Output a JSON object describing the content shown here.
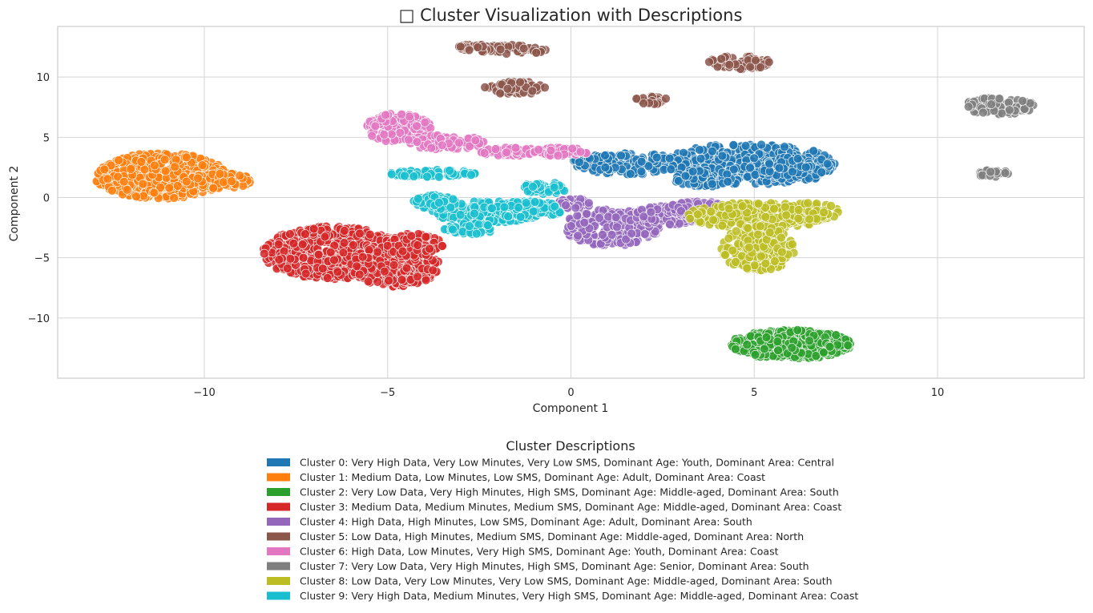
{
  "chart_data": {
    "type": "scatter",
    "title": "□ Cluster Visualization with Descriptions",
    "xlabel": "Component 1",
    "ylabel": "Component 2",
    "xlim": [
      -14,
      14
    ],
    "ylim": [
      -15,
      14.2
    ],
    "xticks": [
      -10,
      -5,
      0,
      5,
      10
    ],
    "yticks": [
      -10,
      -5,
      0,
      5,
      10
    ],
    "grid": true,
    "legend_title": "Cluster Descriptions",
    "legend_placement": "bottom-center, below plot",
    "series": [
      {
        "name": "Cluster 0: Very High Data, Very Low Minutes, Very Low SMS, Dominant Age: Youth, Dominant Area: Central",
        "color": "#1f77b4",
        "regions": [
          {
            "cx": 4.9,
            "cy": 2.8,
            "rx": 2.3,
            "ry": 1.7,
            "n": 420
          },
          {
            "cx": 1.6,
            "cy": 2.8,
            "rx": 1.6,
            "ry": 0.9,
            "n": 180
          },
          {
            "cx": 6.2,
            "cy": 2.4,
            "rx": 1.0,
            "ry": 1.0,
            "n": 120
          },
          {
            "cx": 3.6,
            "cy": 1.6,
            "rx": 0.8,
            "ry": 0.7,
            "n": 60
          }
        ]
      },
      {
        "name": "Cluster 1: Medium Data, Low Minutes, Low SMS, Dominant Age: Adult, Dominant Area: Coast",
        "color": "#ff7f0e",
        "regions": [
          {
            "cx": -11.2,
            "cy": 1.8,
            "rx": 1.8,
            "ry": 1.9,
            "n": 520
          },
          {
            "cx": -9.6,
            "cy": 1.4,
            "rx": 0.9,
            "ry": 0.7,
            "n": 90
          }
        ]
      },
      {
        "name": "Cluster 2: Very Low Data, Very High Minutes, High SMS, Dominant Age: Middle-aged, Dominant Area: South",
        "color": "#2ca02c",
        "regions": [
          {
            "cx": 6.0,
            "cy": -12.2,
            "rx": 1.65,
            "ry": 1.2,
            "n": 420
          }
        ]
      },
      {
        "name": "Cluster 3: Medium Data, Medium Minutes, Medium SMS, Dominant Age: Middle-aged, Dominant Area: Coast",
        "color": "#d62728",
        "regions": [
          {
            "cx": -6.5,
            "cy": -4.6,
            "rx": 1.9,
            "ry": 2.2,
            "n": 520
          },
          {
            "cx": -4.8,
            "cy": -5.6,
            "rx": 1.2,
            "ry": 1.8,
            "n": 260
          },
          {
            "cx": -4.3,
            "cy": -4.0,
            "rx": 0.8,
            "ry": 1.0,
            "n": 90
          }
        ]
      },
      {
        "name": "Cluster 4: High Data, High Minutes, Low SMS, Dominant Age: Adult, Dominant Area: South",
        "color": "#9467bd",
        "regions": [
          {
            "cx": 1.1,
            "cy": -2.5,
            "rx": 1.3,
            "ry": 1.5,
            "n": 260
          },
          {
            "cx": 2.7,
            "cy": -1.5,
            "rx": 1.0,
            "ry": 0.8,
            "n": 120
          },
          {
            "cx": 3.4,
            "cy": -0.9,
            "rx": 0.8,
            "ry": 0.6,
            "n": 80
          },
          {
            "cx": 0.1,
            "cy": -0.5,
            "rx": 0.5,
            "ry": 0.4,
            "n": 40
          }
        ]
      },
      {
        "name": "Cluster 5: Low Data, High Minutes, Medium SMS, Dominant Age: Middle-aged, Dominant Area: North",
        "color": "#8c564b",
        "regions": [
          {
            "cx": -1.5,
            "cy": 12.3,
            "rx": 0.9,
            "ry": 0.4,
            "n": 45
          },
          {
            "cx": -2.6,
            "cy": 12.4,
            "rx": 0.5,
            "ry": 0.35,
            "n": 30
          },
          {
            "cx": -1.5,
            "cy": 9.1,
            "rx": 0.85,
            "ry": 0.55,
            "n": 60
          },
          {
            "cx": 4.6,
            "cy": 11.2,
            "rx": 0.9,
            "ry": 0.55,
            "n": 60
          },
          {
            "cx": 2.2,
            "cy": 8.1,
            "rx": 0.45,
            "ry": 0.35,
            "n": 25
          }
        ]
      },
      {
        "name": "Cluster 6: High Data, Low Minutes, Very High SMS, Dominant Age: Youth, Dominant Area: Coast",
        "color": "#e377c2",
        "regions": [
          {
            "cx": -4.7,
            "cy": 5.8,
            "rx": 0.9,
            "ry": 1.2,
            "n": 140
          },
          {
            "cx": -3.4,
            "cy": 4.6,
            "rx": 1.1,
            "ry": 0.6,
            "n": 100
          },
          {
            "cx": -1.6,
            "cy": 3.8,
            "rx": 0.9,
            "ry": 0.35,
            "n": 60
          },
          {
            "cx": -0.3,
            "cy": 3.8,
            "rx": 0.8,
            "ry": 0.35,
            "n": 60
          }
        ]
      },
      {
        "name": "Cluster 7: Very Low Data, Very High Minutes, High SMS, Dominant Age: Senior, Dominant Area: South",
        "color": "#7f7f7f",
        "regions": [
          {
            "cx": 11.7,
            "cy": 7.6,
            "rx": 0.95,
            "ry": 0.7,
            "n": 90
          },
          {
            "cx": 11.5,
            "cy": 2.0,
            "rx": 0.45,
            "ry": 0.3,
            "n": 25
          }
        ]
      },
      {
        "name": "Cluster 8: Low Data, Very Low Minutes, Very Low SMS, Dominant Age: Middle-aged, Dominant Area: South",
        "color": "#bcbd22",
        "regions": [
          {
            "cx": 5.1,
            "cy": -1.5,
            "rx": 1.9,
            "ry": 1.1,
            "n": 240
          },
          {
            "cx": 5.1,
            "cy": -4.2,
            "rx": 1.0,
            "ry": 1.9,
            "n": 180
          },
          {
            "cx": 6.5,
            "cy": -1.2,
            "rx": 0.8,
            "ry": 0.8,
            "n": 60
          }
        ]
      },
      {
        "name": "Cluster 9: Very High Data, Medium Minutes, Very High SMS, Dominant Age: Middle-aged, Dominant Area: Coast",
        "color": "#17becf",
        "regions": [
          {
            "cx": -3.8,
            "cy": 2.0,
            "rx": 1.2,
            "ry": 0.3,
            "n": 70
          },
          {
            "cx": -2.3,
            "cy": -1.2,
            "rx": 1.5,
            "ry": 0.9,
            "n": 200
          },
          {
            "cx": -1.2,
            "cy": -1.0,
            "rx": 1.0,
            "ry": 0.7,
            "n": 110
          },
          {
            "cx": -3.7,
            "cy": -0.4,
            "rx": 0.6,
            "ry": 0.6,
            "n": 60
          },
          {
            "cx": -0.7,
            "cy": 0.8,
            "rx": 0.6,
            "ry": 0.5,
            "n": 40
          },
          {
            "cx": -2.8,
            "cy": -2.6,
            "rx": 0.7,
            "ry": 0.5,
            "n": 50
          }
        ]
      }
    ]
  }
}
